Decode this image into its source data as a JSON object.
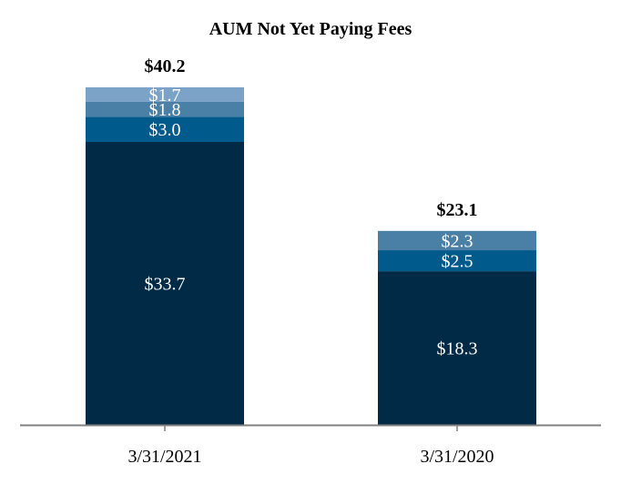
{
  "chart_data": {
    "type": "bar",
    "stacked": true,
    "title": "AUM Not Yet Paying Fees",
    "categories": [
      "3/31/2021",
      "3/31/2020"
    ],
    "totals": [
      "$40.2",
      "$23.1"
    ],
    "total_values": [
      40.2,
      23.1
    ],
    "stacks": [
      {
        "segments": [
          {
            "value": 33.7,
            "label": "$33.7",
            "color": "#002A45"
          },
          {
            "value": 3.0,
            "label": "$3.0",
            "color": "#005A8C"
          },
          {
            "value": 1.8,
            "label": "$1.8",
            "color": "#4A7FA6"
          },
          {
            "value": 1.7,
            "label": "$1.7",
            "color": "#7BA3C8"
          }
        ]
      },
      {
        "segments": [
          {
            "value": 18.3,
            "label": "$18.3",
            "color": "#002A45"
          },
          {
            "value": 2.5,
            "label": "$2.5",
            "color": "#005A8C"
          },
          {
            "value": 2.3,
            "label": "$2.3",
            "color": "#4A7FA6"
          }
        ]
      }
    ],
    "ylim": [
      0,
      40.2
    ],
    "grid": false,
    "legend": "none",
    "axis_color": "#808080"
  }
}
